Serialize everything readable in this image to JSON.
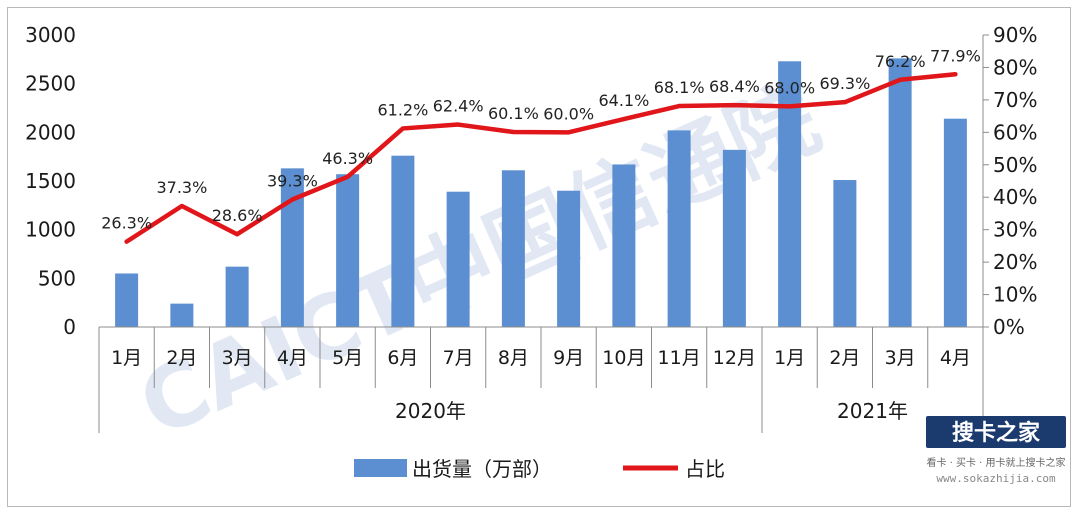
{
  "chart_data": {
    "type": "bar+line",
    "categories": [
      "1月",
      "2月",
      "3月",
      "4月",
      "5月",
      "6月",
      "7月",
      "8月",
      "9月",
      "10月",
      "11月",
      "12月",
      "1月",
      "2月",
      "3月",
      "4月"
    ],
    "groups": [
      {
        "label": "2020年",
        "span": [
          0,
          11
        ]
      },
      {
        "label": "2021年",
        "span": [
          12,
          15
        ]
      }
    ],
    "series": [
      {
        "name": "出货量（万部）",
        "type": "bar",
        "axis": "left",
        "color": "#5b8fd1",
        "values": [
          550,
          240,
          620,
          1630,
          1570,
          1760,
          1390,
          1610,
          1400,
          1670,
          2020,
          1820,
          2730,
          1510,
          2760,
          2140
        ]
      },
      {
        "name": "占比",
        "type": "line",
        "axis": "right",
        "color": "#e0161b",
        "values": [
          26.3,
          37.3,
          28.6,
          39.3,
          46.3,
          61.2,
          62.4,
          60.1,
          60.0,
          64.1,
          68.1,
          68.4,
          68.0,
          69.3,
          76.2,
          77.9
        ],
        "labels": [
          "26.3%",
          "37.3%",
          "28.6%",
          "39.3%",
          "46.3%",
          "61.2%",
          "62.4%",
          "60.1%",
          "60.0%",
          "64.1%",
          "68.1%",
          "68.4%",
          "68.0%",
          "69.3%",
          "76.2%",
          "77.9%"
        ]
      }
    ],
    "y_left": {
      "min": 0,
      "max": 3000,
      "ticks": [
        "0",
        "500",
        "1000",
        "1500",
        "2000",
        "2500",
        "3000"
      ]
    },
    "y_right": {
      "min": 0,
      "max": 90,
      "ticks": [
        "0%",
        "10%",
        "20%",
        "30%",
        "40%",
        "50%",
        "60%",
        "70%",
        "80%",
        "90%"
      ]
    },
    "grid": false,
    "legend_position": "bottom"
  },
  "watermark": {
    "text": "CAICT中国信通院",
    "color": "#c9d6ea"
  },
  "logo": {
    "text": "搜卡之家",
    "tagline": "看卡 · 买卡 · 用卡就上搜卡之家",
    "url": "www.sokazhijia.com"
  }
}
